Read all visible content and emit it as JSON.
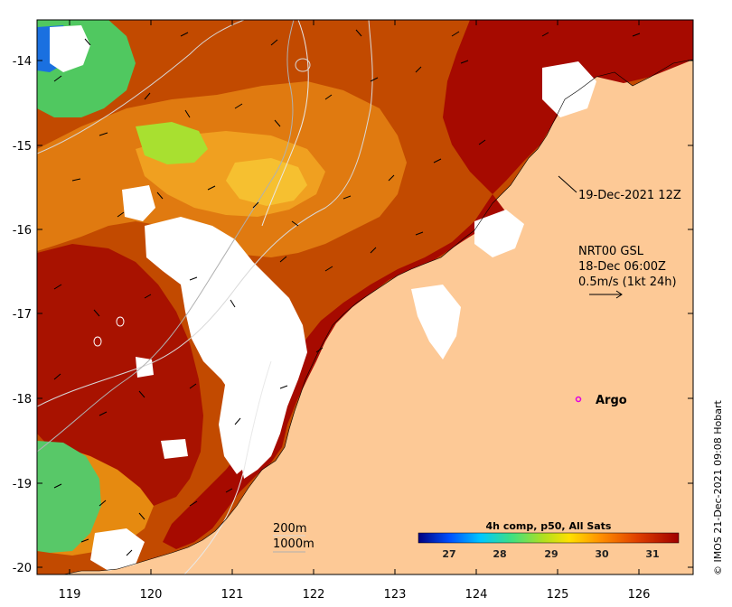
{
  "map": {
    "lon_ticks": [
      "119",
      "120",
      "121",
      "122",
      "123",
      "124",
      "125",
      "126"
    ],
    "lat_ticks": [
      "-14",
      "-15",
      "-16",
      "-17",
      "-18",
      "-19",
      "-20"
    ],
    "land_color": "#FDC996",
    "cloud_color": "#FFFFFF",
    "ocean_base_color": "#C24A00"
  },
  "annotations": {
    "timestamp": "19-Dec-2021 12Z",
    "current_source": "NRT00 GSL",
    "current_time": "18-Dec 06:00Z",
    "current_scale": "0.5m/s (1kt 24h)",
    "argo_label": "Argo",
    "depth_contour_1": "200m",
    "depth_contour_2": "1000m",
    "argo_marker_color": "#E000E0"
  },
  "colorbar": {
    "title": "4h comp, p50, All Sats",
    "ticks": [
      "27",
      "28",
      "29",
      "30",
      "31"
    ],
    "colors": [
      "#000080",
      "#0050FF",
      "#00C8FF",
      "#40E080",
      "#B0E020",
      "#FFE000",
      "#FF9000",
      "#E04000",
      "#A00000"
    ]
  },
  "credit": "© IMOS 21-Dec-2021 09:08 Hobart"
}
